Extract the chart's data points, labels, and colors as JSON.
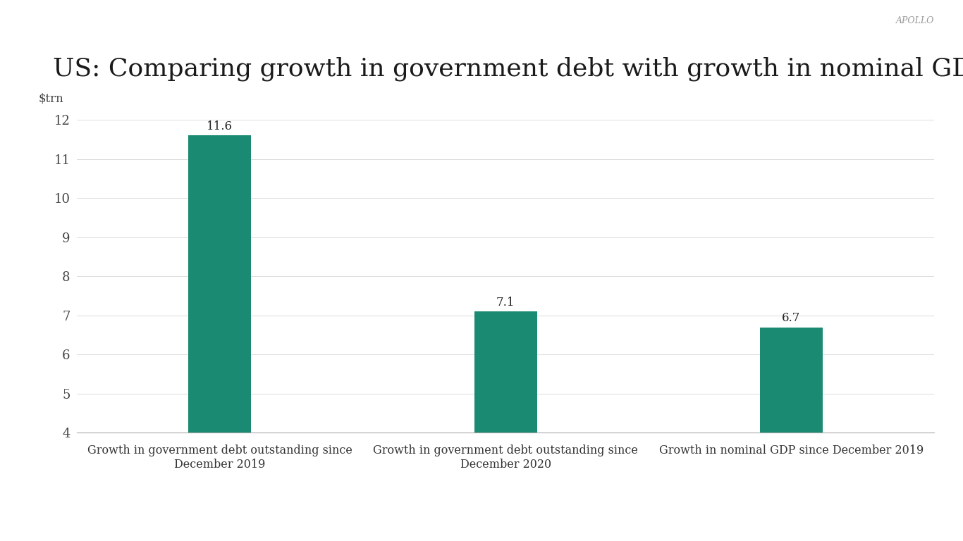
{
  "title": "US: Comparing growth in government debt with growth in nominal GDP",
  "watermark": "APOLLO",
  "ylabel": "$trn",
  "categories": [
    "Growth in government debt outstanding since\nDecember 2019",
    "Growth in government debt outstanding since\nDecember 2020",
    "Growth in nominal GDP since December 2019"
  ],
  "values": [
    11.6,
    7.1,
    6.7
  ],
  "bar_color": "#1a8a72",
  "ylim_min": 4,
  "ylim_max": 12.3,
  "yticks": [
    4,
    5,
    6,
    7,
    8,
    9,
    10,
    11,
    12
  ],
  "background_color": "#ffffff",
  "title_fontsize": 26,
  "label_fontsize": 11.5,
  "tick_fontsize": 13,
  "ylabel_fontsize": 12,
  "annotation_fontsize": 12,
  "bar_width": 0.22,
  "x_positions": [
    1,
    2,
    3
  ]
}
